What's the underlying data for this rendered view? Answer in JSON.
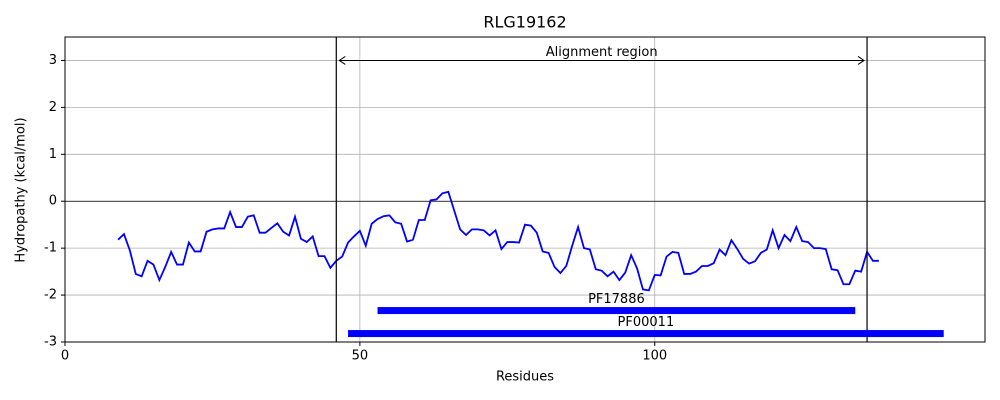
{
  "chart_data": {
    "type": "line",
    "title": "RLG19162",
    "xlabel": "Residues",
    "ylabel": "Hydropathy (kcal/mol)",
    "x": [
      9,
      10,
      11,
      12,
      13,
      14,
      15,
      16,
      17,
      18,
      19,
      20,
      21,
      22,
      23,
      24,
      25,
      26,
      27,
      28,
      29,
      30,
      31,
      32,
      33,
      34,
      35,
      36,
      37,
      38,
      39,
      40,
      41,
      42,
      43,
      44,
      45,
      46,
      47,
      48,
      49,
      50,
      51,
      52,
      53,
      54,
      55,
      56,
      57,
      58,
      59,
      60,
      61,
      62,
      63,
      64,
      65,
      66,
      67,
      68,
      69,
      70,
      71,
      72,
      73,
      74,
      75,
      76,
      77,
      78,
      79,
      80,
      81,
      82,
      83,
      84,
      85,
      86,
      87,
      88,
      89,
      90,
      91,
      92,
      93,
      94,
      95,
      96,
      97,
      98,
      99,
      100,
      101,
      102,
      103,
      104,
      105,
      106,
      107,
      108,
      109,
      110,
      111,
      112,
      113,
      114,
      115,
      116,
      117,
      118,
      119,
      120,
      121,
      122,
      123,
      124,
      125,
      126,
      127,
      128,
      129,
      130,
      131,
      132,
      133,
      134,
      135,
      136,
      137,
      138
    ],
    "values": [
      -0.82,
      -0.7,
      -1.05,
      -1.55,
      -1.6,
      -1.27,
      -1.35,
      -1.68,
      -1.4,
      -1.08,
      -1.35,
      -1.35,
      -0.88,
      -1.07,
      -1.07,
      -0.65,
      -0.6,
      -0.58,
      -0.58,
      -0.23,
      -0.55,
      -0.55,
      -0.33,
      -0.3,
      -0.67,
      -0.67,
      -0.57,
      -0.47,
      -0.65,
      -0.73,
      -0.33,
      -0.8,
      -0.87,
      -0.75,
      -1.17,
      -1.17,
      -1.42,
      -1.27,
      -1.18,
      -0.88,
      -0.75,
      -0.63,
      -0.95,
      -0.48,
      -0.38,
      -0.32,
      -0.3,
      -0.45,
      -0.48,
      -0.86,
      -0.82,
      -0.4,
      -0.4,
      0.02,
      0.04,
      0.17,
      0.2,
      -0.2,
      -0.6,
      -0.72,
      -0.6,
      -0.6,
      -0.62,
      -0.73,
      -0.62,
      -1.02,
      -0.87,
      -0.87,
      -0.88,
      -0.5,
      -0.52,
      -0.67,
      -1.07,
      -1.1,
      -1.4,
      -1.53,
      -1.38,
      -0.95,
      -0.55,
      -1.0,
      -1.03,
      -1.45,
      -1.48,
      -1.6,
      -1.5,
      -1.68,
      -1.52,
      -1.15,
      -1.43,
      -1.88,
      -1.9,
      -1.57,
      -1.58,
      -1.18,
      -1.08,
      -1.1,
      -1.55,
      -1.55,
      -1.5,
      -1.38,
      -1.38,
      -1.32,
      -1.03,
      -1.15,
      -0.83,
      -1.02,
      -1.23,
      -1.33,
      -1.28,
      -1.1,
      -1.03,
      -0.62,
      -1.0,
      -0.72,
      -0.85,
      -0.55,
      -0.85,
      -0.87,
      -1.0,
      -1.0,
      -1.02,
      -1.45,
      -1.47,
      -1.77,
      -1.77,
      -1.48,
      -1.5,
      -1.08,
      -1.27,
      -1.27
    ],
    "color": "#0000ff",
    "xlim": [
      0,
      156
    ],
    "ylim": [
      -3,
      3.5
    ],
    "xticks": [
      0,
      50,
      100
    ],
    "yticks": [
      -3,
      -2,
      -1,
      0,
      1,
      2,
      3
    ],
    "grid": true,
    "hline": 0,
    "region": {
      "label": "Alignment region",
      "start": 46,
      "end": 136,
      "y": 3
    },
    "domains": [
      {
        "label": "PF17886",
        "start": 53,
        "end": 134,
        "y": -2.33,
        "color": "#0000ff"
      },
      {
        "label": "PF00011",
        "start": 48,
        "end": 149,
        "y": -2.82,
        "color": "#0000ff"
      }
    ]
  }
}
